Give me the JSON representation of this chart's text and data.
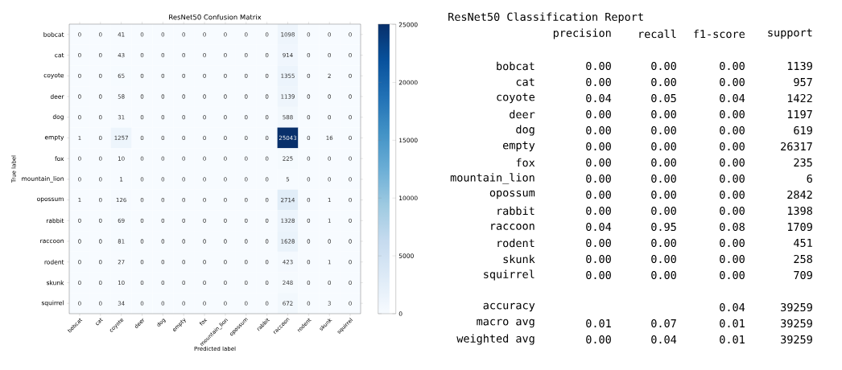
{
  "chart_data": [
    {
      "type": "heatmap",
      "title": "ResNet50 Confusion Matrix",
      "xlabel": "Predicted label",
      "ylabel": "True label",
      "categories": [
        "bobcat",
        "cat",
        "coyote",
        "deer",
        "dog",
        "empty",
        "fox",
        "mountain_lion",
        "opossum",
        "rabbit",
        "raccoon",
        "rodent",
        "skunk",
        "squirrel"
      ],
      "y_categories": [
        "bobcat",
        "cat",
        "coyote",
        "deer",
        "dog",
        "empty",
        "fox",
        "mountain_lion",
        "opossum",
        "rabbit",
        "raccoon",
        "rodent",
        "skunk",
        "squirrel"
      ],
      "cells": [
        [
          0,
          0,
          41,
          0,
          0,
          0,
          0,
          0,
          0,
          0,
          1098,
          0,
          0,
          0
        ],
        [
          0,
          0,
          43,
          0,
          0,
          0,
          0,
          0,
          0,
          0,
          914,
          0,
          0,
          0
        ],
        [
          0,
          0,
          65,
          0,
          0,
          0,
          0,
          0,
          0,
          0,
          1355,
          0,
          2,
          0
        ],
        [
          0,
          0,
          58,
          0,
          0,
          0,
          0,
          0,
          0,
          0,
          1139,
          0,
          0,
          0
        ],
        [
          0,
          0,
          31,
          0,
          0,
          0,
          0,
          0,
          0,
          0,
          588,
          0,
          0,
          0
        ],
        [
          1,
          0,
          1257,
          0,
          0,
          0,
          0,
          0,
          0,
          0,
          25043,
          0,
          16,
          0
        ],
        [
          0,
          0,
          10,
          0,
          0,
          0,
          0,
          0,
          0,
          0,
          225,
          0,
          0,
          0
        ],
        [
          0,
          0,
          1,
          0,
          0,
          0,
          0,
          0,
          0,
          0,
          5,
          0,
          0,
          0
        ],
        [
          1,
          0,
          126,
          0,
          0,
          0,
          0,
          0,
          0,
          0,
          2714,
          0,
          1,
          0
        ],
        [
          0,
          0,
          69,
          0,
          0,
          0,
          0,
          0,
          0,
          0,
          1328,
          0,
          1,
          0
        ],
        [
          0,
          0,
          81,
          0,
          0,
          0,
          0,
          0,
          0,
          0,
          1628,
          0,
          0,
          0
        ],
        [
          0,
          0,
          27,
          0,
          0,
          0,
          0,
          0,
          0,
          0,
          423,
          0,
          1,
          0
        ],
        [
          0,
          0,
          10,
          0,
          0,
          0,
          0,
          0,
          0,
          0,
          248,
          0,
          0,
          0
        ],
        [
          0,
          0,
          34,
          0,
          0,
          0,
          0,
          0,
          0,
          0,
          672,
          0,
          3,
          0
        ]
      ],
      "data_labels": true,
      "clim": [
        0,
        25043
      ],
      "cticks": [
        0,
        5000,
        10000,
        15000,
        20000,
        25000
      ]
    },
    {
      "type": "other",
      "title": "ResNet50 Classification Report",
      "categories": [
        "bobcat",
        "cat",
        "coyote",
        "deer",
        "dog",
        "empty",
        "fox",
        "mountain_lion",
        "opossum",
        "rabbit",
        "raccoon",
        "rodent",
        "skunk",
        "squirrel",
        "accuracy",
        "macro avg",
        "weighted avg"
      ],
      "series": [
        {
          "name": "precision",
          "values": [
            0.0,
            0.0,
            0.04,
            0.0,
            0.0,
            0.0,
            0.0,
            0.0,
            0.0,
            0.0,
            0.04,
            0.0,
            0.0,
            0.0,
            null,
            0.01,
            0.0
          ],
          "value_labels": [
            "0.00",
            "0.00",
            "0.04",
            "0.00",
            "0.00",
            "0.00",
            "0.00",
            "0.00",
            "0.00",
            "0.00",
            "0.04",
            "0.00",
            "0.00",
            "0.00",
            null,
            "0.01",
            "0.00"
          ]
        },
        {
          "name": "recall",
          "values": [
            0.0,
            0.0,
            0.05,
            0.0,
            0.0,
            0.0,
            0.0,
            0.0,
            0.0,
            0.0,
            0.95,
            0.0,
            0.0,
            0.0,
            null,
            0.07,
            0.04
          ],
          "value_labels": [
            "0.00",
            "0.00",
            "0.05",
            "0.00",
            "0.00",
            "0.00",
            "0.00",
            "0.00",
            "0.00",
            "0.00",
            "0.95",
            "0.00",
            "0.00",
            "0.00",
            null,
            "0.07",
            "0.04"
          ]
        },
        {
          "name": "f1-score",
          "values": [
            0.0,
            0.0,
            0.04,
            0.0,
            0.0,
            0.0,
            0.0,
            0.0,
            0.0,
            0.0,
            0.08,
            0.0,
            0.0,
            0.0,
            0.04,
            0.01,
            0.01
          ],
          "value_labels": [
            "0.00",
            "0.00",
            "0.04",
            "0.00",
            "0.00",
            "0.00",
            "0.00",
            "0.00",
            "0.00",
            "0.00",
            "0.08",
            "0.00",
            "0.00",
            "0.00",
            "0.04",
            "0.01",
            "0.01"
          ]
        },
        {
          "name": "support",
          "values": [
            1139,
            957,
            1422,
            1197,
            619,
            26317,
            235,
            6,
            2842,
            1398,
            1709,
            451,
            258,
            709,
            39259,
            39259,
            39259
          ],
          "value_labels": [
            "1139",
            "957",
            "1422",
            "1197",
            "619",
            "26317",
            "235",
            "6",
            "2842",
            "1398",
            "1709",
            "451",
            "258",
            "709",
            "39259",
            "39259",
            "39259"
          ]
        }
      ]
    }
  ]
}
